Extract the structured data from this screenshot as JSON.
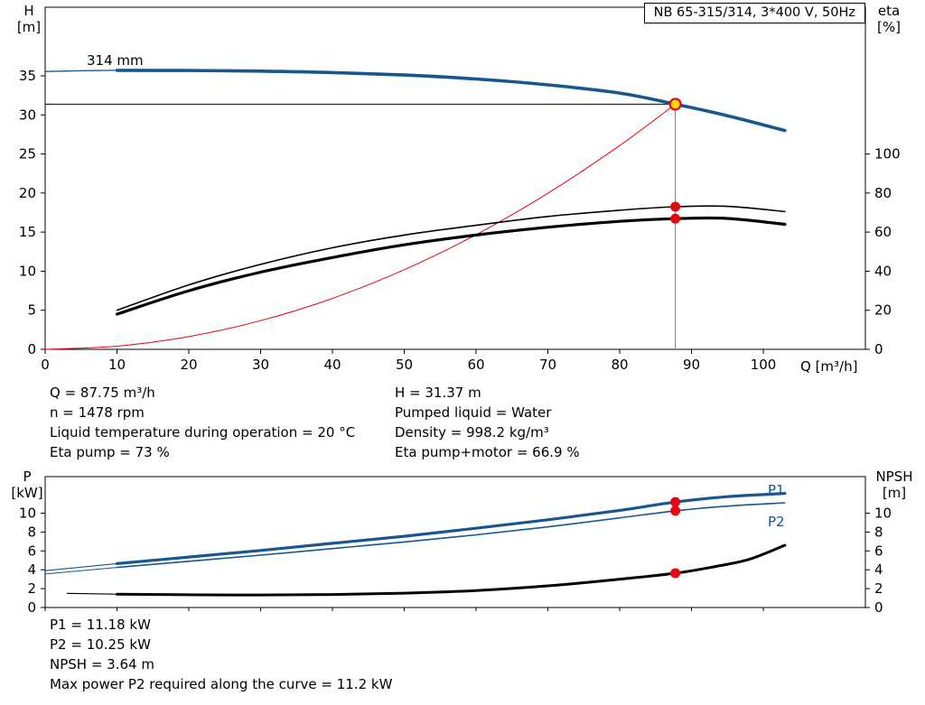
{
  "title_box": "NB 65-315/314, 3*400 V, 50Hz",
  "colors": {
    "blue": "#17568f",
    "red": "#e30613",
    "black": "#000000",
    "gray": "#8a8a8a",
    "duty_fill": "#ffd900"
  },
  "labels": {
    "h_axis": [
      "H",
      "[m]"
    ],
    "eta_axis": [
      "eta",
      "[%]"
    ],
    "q_axis": "Q [m³/h]",
    "p_axis": [
      "P",
      "[kW]"
    ],
    "npsh_axis": [
      "NPSH",
      "[m]"
    ],
    "impeller": "314 mm",
    "p1": "P1",
    "p2": "P2"
  },
  "info": {
    "left": [
      "Q = 87.75 m³/h",
      "n = 1478 rpm",
      "Liquid temperature during operation = 20 °C",
      "Eta pump = 73 %"
    ],
    "right": [
      "H = 31.37 m",
      "Pumped liquid = Water",
      "Density = 998.2 kg/m³",
      "Eta pump+motor = 66.9 %"
    ],
    "bottom": [
      "P1 = 11.18 kW",
      "P2 = 10.25 kW",
      "NPSH = 3.64 m",
      "Max power P2 required along the curve = 11.2 kW"
    ]
  },
  "chart_data": [
    {
      "type": "line",
      "title": "NB 65-315/314, 3*400 V, 50Hz",
      "xlabel": "Q [m³/h]",
      "ylabel_left": "H [m]",
      "ylabel_right": "eta [%]",
      "xlim": [
        0,
        114
      ],
      "ylim_left": [
        0,
        43.8
      ],
      "ylim_right": [
        0,
        175
      ],
      "eta_scale_note": "eta 100 % aligns with H = 25 m",
      "x_ticks": [
        0,
        10,
        20,
        30,
        40,
        50,
        60,
        70,
        80,
        90,
        100
      ],
      "y_left_ticks": [
        0,
        5,
        10,
        15,
        20,
        25,
        30,
        35
      ],
      "y_right_ticks": [
        0,
        20,
        40,
        60,
        80,
        100
      ],
      "grid": false,
      "series": [
        {
          "name": "head-curve-314mm",
          "axis": "left",
          "color": "blue",
          "width": 3.6,
          "lead_points": [
            [
              0,
              35.55
            ],
            [
              5,
              35.65
            ],
            [
              10,
              35.7
            ]
          ],
          "points": [
            [
              10,
              35.7
            ],
            [
              20,
              35.68
            ],
            [
              30,
              35.6
            ],
            [
              40,
              35.42
            ],
            [
              50,
              35.1
            ],
            [
              60,
              34.6
            ],
            [
              70,
              33.85
            ],
            [
              80,
              32.8
            ],
            [
              87.75,
              31.37
            ],
            [
              95,
              29.9
            ],
            [
              103,
              28.0
            ]
          ]
        },
        {
          "name": "system-curve",
          "axis": "left",
          "color": "red",
          "width": 1,
          "points": [
            [
              0,
              0
            ],
            [
              10,
              0.41
            ],
            [
              20,
              1.63
            ],
            [
              30,
              3.67
            ],
            [
              40,
              6.52
            ],
            [
              50,
              10.19
            ],
            [
              60,
              14.67
            ],
            [
              70,
              19.97
            ],
            [
              80,
              26.08
            ],
            [
              87.75,
              31.37
            ]
          ]
        },
        {
          "name": "eta-pump-curve",
          "axis": "right",
          "color": "black",
          "width": 1.6,
          "points": [
            [
              10,
              20
            ],
            [
              20,
              33
            ],
            [
              30,
              43.5
            ],
            [
              40,
              52
            ],
            [
              50,
              58.5
            ],
            [
              60,
              63.5
            ],
            [
              70,
              68
            ],
            [
              80,
              71.2
            ],
            [
              87.75,
              73
            ],
            [
              95,
              73.2
            ],
            [
              103,
              70.5
            ]
          ]
        },
        {
          "name": "eta-pump-motor-curve",
          "axis": "right",
          "color": "black",
          "width": 3.2,
          "points": [
            [
              10,
              18
            ],
            [
              20,
              30
            ],
            [
              30,
              39.5
            ],
            [
              40,
              47
            ],
            [
              50,
              53.5
            ],
            [
              60,
              58.5
            ],
            [
              70,
              62.5
            ],
            [
              80,
              65.5
            ],
            [
              87.75,
              66.9
            ],
            [
              95,
              67
            ],
            [
              103,
              64
            ]
          ]
        }
      ],
      "duty_point": {
        "q": 87.75,
        "h": 31.37
      },
      "markers": [
        {
          "q": 87.75,
          "y": 73,
          "meaning": "eta pump = 73 %"
        },
        {
          "q": 87.75,
          "y": 66.9,
          "meaning": "eta pump+motor = 66.9 %"
        }
      ]
    },
    {
      "type": "line",
      "xlabel": "Q [m³/h]",
      "ylabel_left": "P [kW]",
      "ylabel_right": "NPSH [m]",
      "xlim": [
        0,
        114
      ],
      "ylim": [
        0,
        13.9
      ],
      "y_left_ticks": [
        0,
        2,
        4,
        6,
        8,
        10
      ],
      "y_right_ticks": [
        0,
        2,
        4,
        6,
        8,
        10
      ],
      "grid": false,
      "series": [
        {
          "name": "p1-curve",
          "axis": "left",
          "color": "blue",
          "width": 3.2,
          "lead_points": [
            [
              0,
              3.9
            ],
            [
              10,
              4.65
            ]
          ],
          "points": [
            [
              10,
              4.65
            ],
            [
              20,
              5.35
            ],
            [
              30,
              6.05
            ],
            [
              40,
              6.8
            ],
            [
              50,
              7.55
            ],
            [
              60,
              8.4
            ],
            [
              70,
              9.3
            ],
            [
              80,
              10.3
            ],
            [
              87.75,
              11.18
            ],
            [
              95,
              11.75
            ],
            [
              103,
              12.1
            ]
          ]
        },
        {
          "name": "p2-curve",
          "axis": "left",
          "color": "blue",
          "width": 1.6,
          "lead_points": [
            [
              0,
              3.55
            ],
            [
              10,
              4.25
            ]
          ],
          "points": [
            [
              10,
              4.25
            ],
            [
              20,
              4.9
            ],
            [
              30,
              5.55
            ],
            [
              40,
              6.25
            ],
            [
              50,
              6.95
            ],
            [
              60,
              7.7
            ],
            [
              70,
              8.55
            ],
            [
              80,
              9.5
            ],
            [
              87.75,
              10.25
            ],
            [
              95,
              10.75
            ],
            [
              103,
              11.1
            ]
          ]
        },
        {
          "name": "npsh-curve",
          "axis": "right",
          "color": "black",
          "width": 3,
          "lead_points": [
            [
              3,
              1.5
            ],
            [
              10,
              1.42
            ]
          ],
          "points": [
            [
              10,
              1.42
            ],
            [
              20,
              1.35
            ],
            [
              30,
              1.33
            ],
            [
              40,
              1.38
            ],
            [
              50,
              1.52
            ],
            [
              60,
              1.8
            ],
            [
              70,
              2.3
            ],
            [
              80,
              3.0
            ],
            [
              87.75,
              3.64
            ],
            [
              93,
              4.3
            ],
            [
              98,
              5.1
            ],
            [
              103,
              6.6
            ]
          ]
        }
      ],
      "markers": [
        {
          "q": 87.75,
          "y": 11.18,
          "meaning": "P1 = 11.18 kW"
        },
        {
          "q": 87.75,
          "y": 10.25,
          "meaning": "P2 = 10.25 kW"
        },
        {
          "q": 87.75,
          "y": 3.64,
          "meaning": "NPSH = 3.64 m"
        }
      ]
    }
  ]
}
